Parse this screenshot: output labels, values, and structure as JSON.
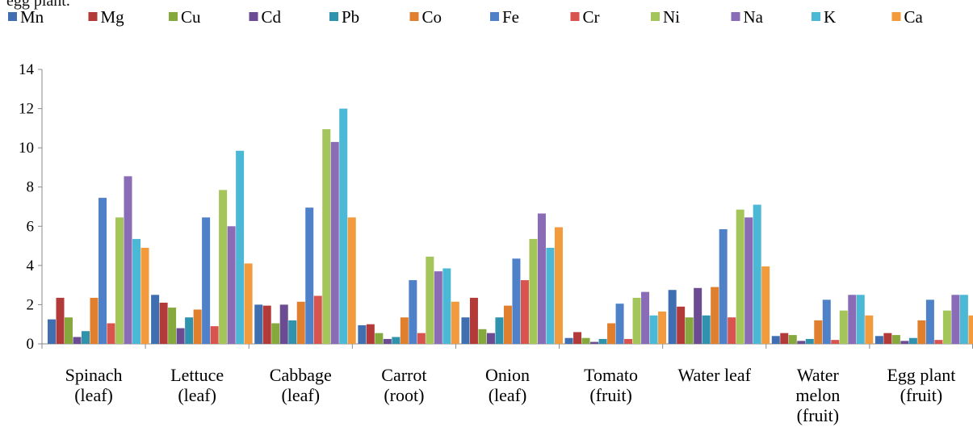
{
  "caption_fragment": "egg plant.",
  "chart_data": {
    "type": "bar",
    "categories": [
      [
        "Spinach",
        "(leaf)"
      ],
      [
        "Lettuce",
        "(leaf)"
      ],
      [
        "Cabbage",
        "(leaf)"
      ],
      [
        "Carrot",
        "(root)"
      ],
      [
        "Onion",
        "(leaf)"
      ],
      [
        "Tomato",
        "(fruit)"
      ],
      [
        "Water leaf"
      ],
      [
        "Water",
        "melon",
        "(fruit)"
      ],
      [
        "Egg plant",
        "(fruit)"
      ]
    ],
    "series": [
      {
        "name": "Mn",
        "color": "#3f6fb0",
        "values": [
          1.25,
          2.5,
          2.0,
          0.95,
          1.35,
          0.3,
          2.75,
          0.4,
          0.4
        ]
      },
      {
        "name": "Mg",
        "color": "#b23a38",
        "values": [
          2.35,
          2.1,
          1.95,
          1.0,
          2.35,
          0.6,
          1.9,
          0.55,
          0.55
        ]
      },
      {
        "name": "Cu",
        "color": "#86a93d",
        "values": [
          1.35,
          1.85,
          1.05,
          0.55,
          0.75,
          0.3,
          1.35,
          0.45,
          0.45
        ]
      },
      {
        "name": "Cd",
        "color": "#6b4c93",
        "values": [
          0.35,
          0.8,
          2.0,
          0.25,
          0.55,
          0.1,
          2.85,
          0.15,
          0.15
        ]
      },
      {
        "name": "Pb",
        "color": "#2f93ad",
        "values": [
          0.65,
          1.35,
          1.2,
          0.35,
          1.35,
          0.25,
          1.45,
          0.25,
          0.3
        ]
      },
      {
        "name": "Co",
        "color": "#e07f2e",
        "values": [
          2.35,
          1.75,
          2.15,
          1.35,
          1.95,
          1.05,
          2.9,
          1.2,
          1.2
        ]
      },
      {
        "name": "Fe",
        "color": "#4f81c9",
        "values": [
          7.45,
          6.45,
          6.95,
          3.25,
          4.35,
          2.05,
          5.85,
          2.25,
          2.25
        ]
      },
      {
        "name": "Cr",
        "color": "#d9534f",
        "values": [
          1.05,
          0.9,
          2.45,
          0.55,
          3.25,
          0.25,
          1.35,
          0.2,
          0.2
        ]
      },
      {
        "name": "Ni",
        "color": "#a3c55a",
        "values": [
          6.45,
          7.85,
          10.95,
          4.45,
          5.35,
          2.35,
          6.85,
          1.7,
          1.7
        ]
      },
      {
        "name": "Na",
        "color": "#8a6bb5",
        "values": [
          8.55,
          6.0,
          10.3,
          3.7,
          6.65,
          2.65,
          6.45,
          2.5,
          2.5
        ]
      },
      {
        "name": "K",
        "color": "#4bb8d6",
        "values": [
          5.35,
          9.85,
          12.0,
          3.85,
          4.9,
          1.45,
          7.1,
          2.5,
          2.5
        ]
      },
      {
        "name": "Ca",
        "color": "#f39a3c",
        "values": [
          4.9,
          4.1,
          6.45,
          2.15,
          5.95,
          1.65,
          3.95,
          1.45,
          1.45
        ]
      }
    ],
    "legend_display": [
      "Mn",
      "Mg",
      "Cu",
      "Cd",
      "Pb",
      "Co",
      "Fe",
      "Cr",
      "Ni",
      "Na",
      "K",
      "Ca"
    ],
    "ylim": [
      0,
      14
    ],
    "yticks": [
      "0",
      "2",
      "4",
      "6",
      "8",
      "10",
      "12",
      "14"
    ],
    "grid": false,
    "legend_position": "top",
    "axis_color": "#888888"
  }
}
